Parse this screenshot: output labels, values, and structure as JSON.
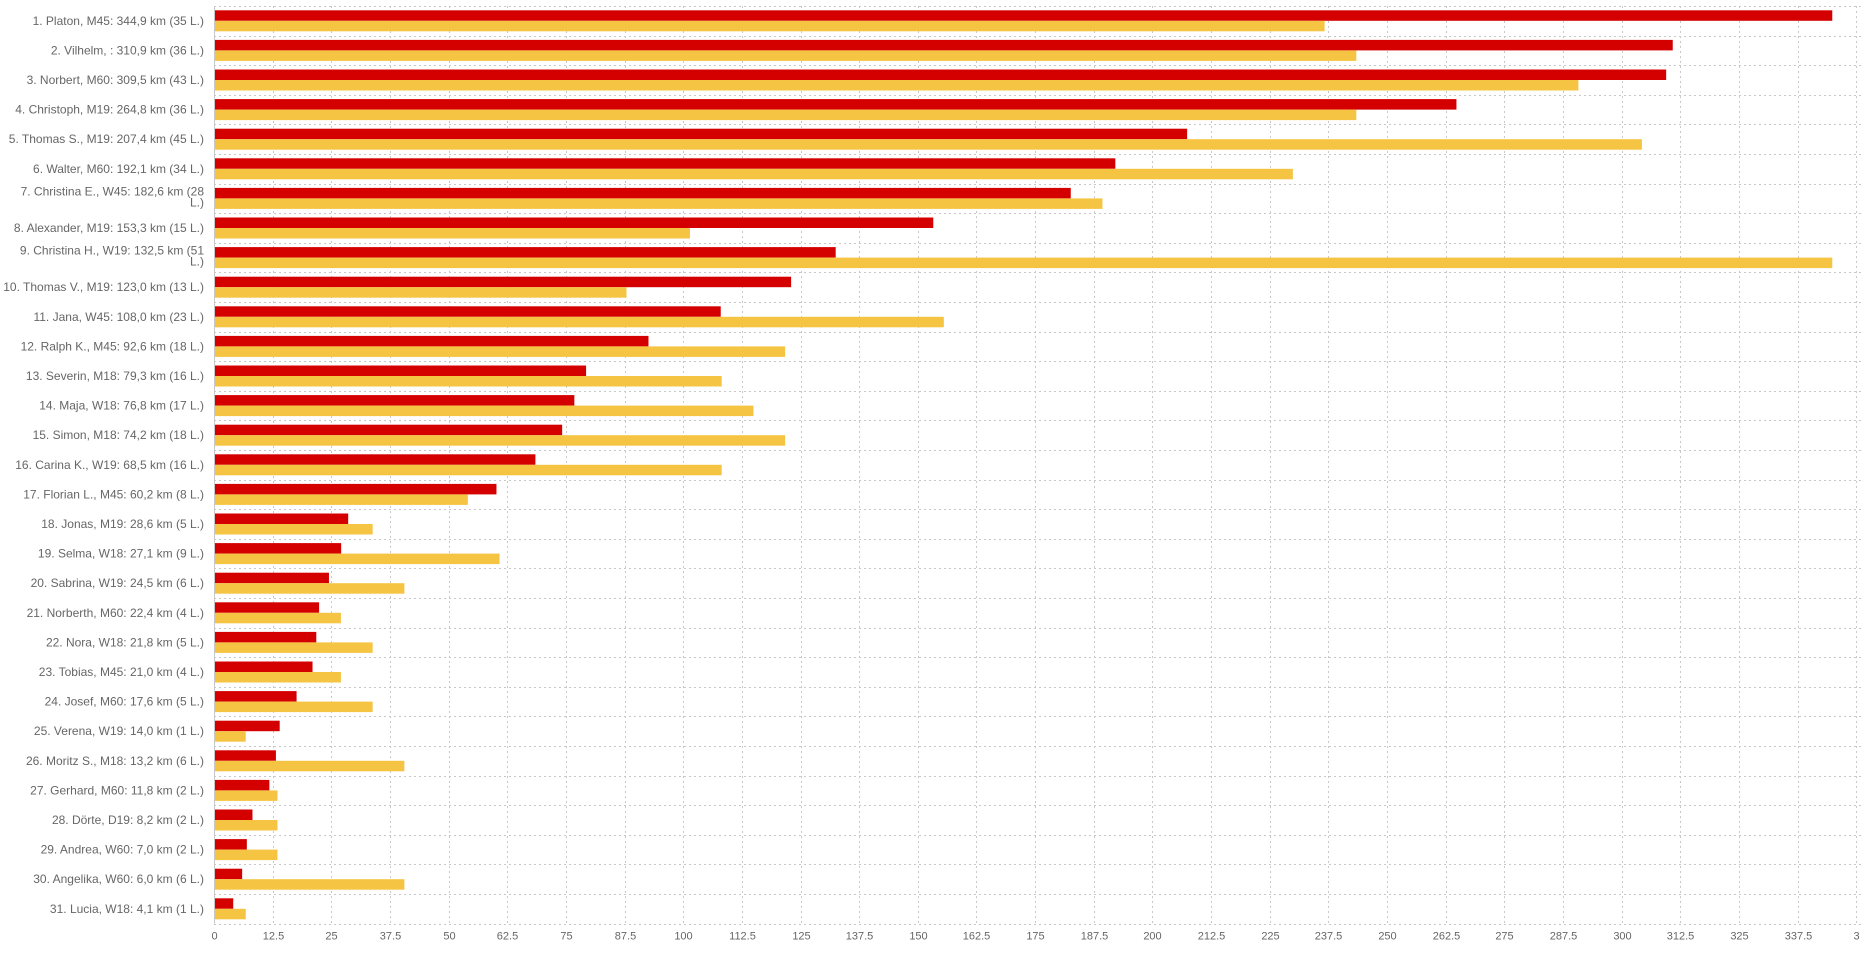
{
  "chart_data": {
    "type": "bar",
    "orientation": "horizontal",
    "grid": true,
    "legend": "none",
    "xlim": [
      0,
      350
    ],
    "x_ticks": [
      "0",
      "12.5",
      "25",
      "37.5",
      "50",
      "62.5",
      "75",
      "87.5",
      "100",
      "112.5",
      "125",
      "137.5",
      "150",
      "162.5",
      "175",
      "187.5",
      "200",
      "212.5",
      "225",
      "237.5",
      "250",
      "262.5",
      "275",
      "287.5",
      "300",
      "312.5",
      "325",
      "337.5",
      "3"
    ],
    "categories": [
      "1. Platon, M45: 344,9 km (35 L.)",
      "2. Vilhelm, : 310,9 km (36 L.)",
      "3. Norbert, M60: 309,5 km (43 L.)",
      "4. Christoph, M19: 264,8 km (36 L.)",
      "5. Thomas S., M19: 207,4 km (45 L.)",
      "6. Walter, M60: 192,1 km (34 L.)",
      "7. Christina E., W45: 182,6 km (28 L.)",
      "8. Alexander, M19: 153,3 km (15 L.)",
      "9. Christina H., W19: 132,5 km (51 L.)",
      "10. Thomas V., M19: 123,0 km (13 L.)",
      "11. Jana, W45: 108,0 km (23 L.)",
      "12. Ralph K., M45: 92,6 km (18 L.)",
      "13. Severin, M18: 79,3 km (16 L.)",
      "14. Maja, W18: 76,8 km (17 L.)",
      "15. Simon, M18: 74,2 km (18 L.)",
      "16. Carina K., W19: 68,5 km (16 L.)",
      "17. Florian L., M45: 60,2 km (8 L.)",
      "18. Jonas, M19: 28,6 km (5 L.)",
      "19. Selma, W18: 27,1 km (9 L.)",
      "20. Sabrina, W19: 24,5 km (6 L.)",
      "21. Norberth, M60: 22,4 km (4 L.)",
      "22. Nora, W18: 21,8 km (5 L.)",
      "23. Tobias, M45: 21,0 km (4 L.)",
      "24. Josef, M60: 17,6 km (5 L.)",
      "25. Verena, W19: 14,0 km (1 L.)",
      "26. Moritz S., M18: 13,2 km (6 L.)",
      "27. Gerhard, M60: 11,8 km (2 L.)",
      "28. Dörte, D19: 8,2 km (2 L.)",
      "29. Andrea, W60: 7,0 km (2 L.)",
      "30. Angelika, W60: 6,0 km (6 L.)",
      "31. Lucia, W18: 4,1 km (1 L.)"
    ],
    "series": [
      {
        "color": "#d40000",
        "values": [
          344.9,
          310.9,
          309.5,
          264.8,
          207.4,
          192.1,
          182.6,
          153.3,
          132.5,
          123.0,
          108.0,
          92.6,
          79.3,
          76.8,
          74.2,
          68.5,
          60.2,
          28.6,
          27.1,
          24.5,
          22.4,
          21.8,
          21.0,
          17.6,
          14.0,
          13.2,
          11.8,
          8.2,
          7.0,
          6.0,
          4.1
        ]
      },
      {
        "color": "#f5c443",
        "values": [
          35,
          36,
          43,
          36,
          45,
          34,
          28,
          15,
          51,
          13,
          23,
          18,
          16,
          17,
          18,
          16,
          8,
          5,
          9,
          6,
          4,
          5,
          4,
          5,
          1,
          6,
          2,
          2,
          2,
          6,
          1
        ],
        "value_scale_max": 51
      }
    ]
  }
}
